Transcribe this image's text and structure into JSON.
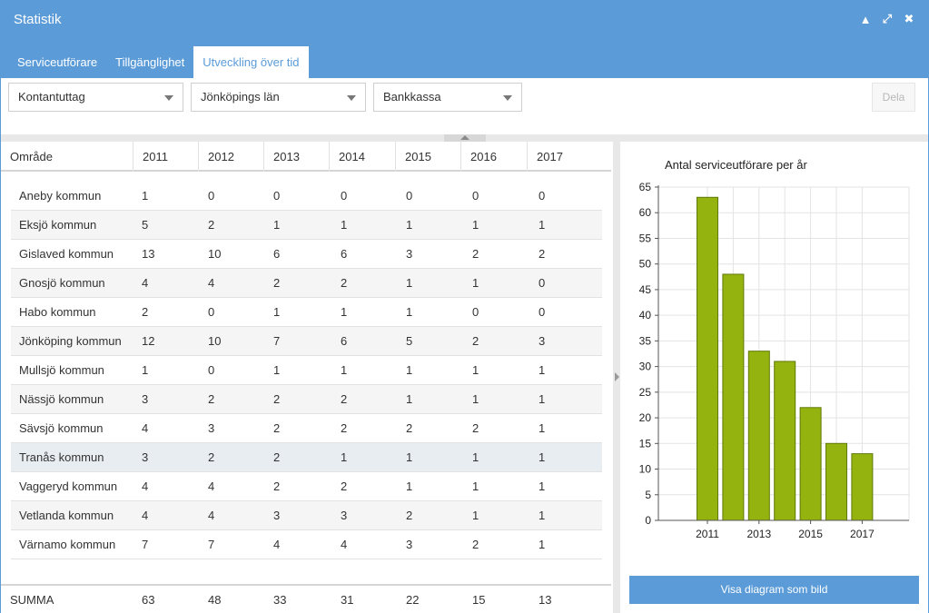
{
  "window": {
    "title": "Statistik",
    "controls": [
      "collapse-icon",
      "expand-icon",
      "close-icon"
    ]
  },
  "tabs": [
    {
      "label": "Serviceutförare",
      "active": false
    },
    {
      "label": "Tillgänglighet",
      "active": false
    },
    {
      "label": "Utveckling över tid",
      "active": true
    }
  ],
  "filters": {
    "service": "Kontantuttag",
    "region": "Jönköpings län",
    "type": "Bankkassa",
    "share_label": "Dela"
  },
  "table": {
    "headers": [
      "Område",
      "2011",
      "2012",
      "2013",
      "2014",
      "2015",
      "2016",
      "2017"
    ],
    "rows": [
      {
        "name": "Aneby kommun",
        "values": [
          1,
          0,
          0,
          0,
          0,
          0,
          0
        ]
      },
      {
        "name": "Eksjö kommun",
        "values": [
          5,
          2,
          1,
          1,
          1,
          1,
          1
        ]
      },
      {
        "name": "Gislaved kommun",
        "values": [
          13,
          10,
          6,
          6,
          3,
          2,
          2
        ]
      },
      {
        "name": "Gnosjö kommun",
        "values": [
          4,
          4,
          2,
          2,
          1,
          1,
          0
        ]
      },
      {
        "name": "Habo kommun",
        "values": [
          2,
          0,
          1,
          1,
          1,
          0,
          0
        ]
      },
      {
        "name": "Jönköping kommun",
        "values": [
          12,
          10,
          7,
          6,
          5,
          2,
          3
        ]
      },
      {
        "name": "Mullsjö kommun",
        "values": [
          1,
          0,
          1,
          1,
          1,
          1,
          1
        ]
      },
      {
        "name": "Nässjö kommun",
        "values": [
          3,
          2,
          2,
          2,
          1,
          1,
          1
        ]
      },
      {
        "name": "Sävsjö kommun",
        "values": [
          4,
          3,
          2,
          2,
          2,
          2,
          1
        ]
      },
      {
        "name": "Tranås kommun",
        "values": [
          3,
          2,
          2,
          1,
          1,
          1,
          1
        ]
      },
      {
        "name": "Vaggeryd kommun",
        "values": [
          4,
          4,
          2,
          2,
          1,
          1,
          1
        ]
      },
      {
        "name": "Vetlanda kommun",
        "values": [
          4,
          4,
          3,
          3,
          2,
          1,
          1
        ]
      },
      {
        "name": "Värnamo kommun",
        "values": [
          7,
          7,
          4,
          4,
          3,
          2,
          1
        ]
      }
    ],
    "selected_row": "Tranås kommun",
    "footer": {
      "label": "SUMMA",
      "values": [
        63,
        48,
        33,
        31,
        22,
        15,
        13
      ]
    }
  },
  "chart_data": {
    "type": "bar",
    "title": "Antal serviceutförare per år",
    "categories": [
      "2011",
      "2012",
      "2013",
      "2014",
      "2015",
      "2016",
      "2017"
    ],
    "x_tick_labels": [
      "2011",
      "2013",
      "2015",
      "2017"
    ],
    "values": [
      63,
      48,
      33,
      31,
      22,
      15,
      13
    ],
    "ylim": [
      0,
      65
    ],
    "yticks": [
      0,
      5,
      10,
      15,
      20,
      25,
      30,
      35,
      40,
      45,
      50,
      55,
      60,
      65
    ],
    "grid": true,
    "bar_color": "#94b30f",
    "bar_border": "#5f7a08"
  },
  "chart_button_label": "Visa diagram som bild",
  "colors": {
    "accent": "#5b9bd8"
  }
}
